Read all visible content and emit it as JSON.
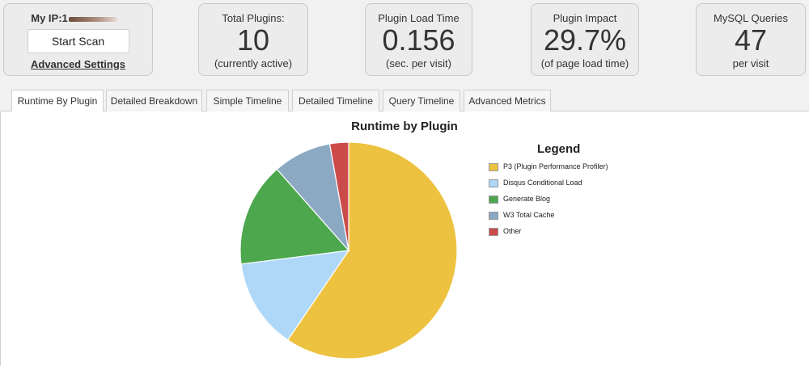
{
  "scan": {
    "ip_label": "My IP:1",
    "ip_tail": "",
    "start_scan": "Start Scan",
    "advanced_settings": "Advanced Settings"
  },
  "stats": [
    {
      "title": "Total Plugins:",
      "value": "10",
      "sub": "(currently active)"
    },
    {
      "title": "Plugin Load Time",
      "value": "0.156",
      "sub": "(sec. per visit)"
    },
    {
      "title": "Plugin Impact",
      "value": "29.7%",
      "sub": "(of page load time)"
    },
    {
      "title": "MySQL Queries",
      "value": "47",
      "sub": "per visit"
    }
  ],
  "tabs": [
    {
      "label": "Runtime By Plugin",
      "active": true
    },
    {
      "label": "Detailed Breakdown",
      "active": false
    },
    {
      "label": "Simple Timeline",
      "active": false
    },
    {
      "label": "Detailed Timeline",
      "active": false
    },
    {
      "label": "Query Timeline",
      "active": false
    },
    {
      "label": "Advanced Metrics",
      "active": false
    }
  ],
  "chart_data": {
    "type": "pie",
    "title": "Runtime by Plugin",
    "legend_title": "Legend",
    "legend_position": "right",
    "categories": [
      "P3 (Plugin Performance Profiler)",
      "Disqus Conditional Load",
      "Generate Blog",
      "W3 Total Cache",
      "Other"
    ],
    "values": [
      59.5,
      13.5,
      15.5,
      8.7,
      2.8
    ],
    "colors": [
      "#edc240",
      "#afd8f8",
      "#4da74d",
      "#8ca9c4",
      "#cb4b4b"
    ]
  }
}
